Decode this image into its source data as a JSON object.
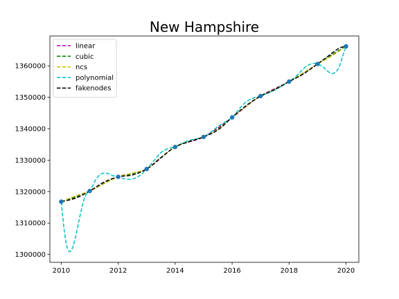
{
  "chart_data": {
    "type": "line",
    "title": "New Hampshire",
    "xlabel": "",
    "ylabel": "",
    "xlim": [
      2009.6,
      2020.45
    ],
    "ylim": [
      1297500,
      1369500
    ],
    "xticks": [
      2010,
      2012,
      2014,
      2016,
      2018,
      2020
    ],
    "yticks": [
      1300000,
      1310000,
      1320000,
      1330000,
      1340000,
      1350000,
      1360000
    ],
    "grid": false,
    "legend_position": "top-left",
    "points": {
      "name": "",
      "color": "#1f77b4",
      "x": [
        2010,
        2011,
        2012,
        2013,
        2014,
        2015,
        2016,
        2017,
        2018,
        2019,
        2020
      ],
      "y": [
        1316800,
        1320200,
        1324700,
        1327200,
        1334200,
        1337400,
        1343600,
        1350400,
        1355000,
        1360600,
        1366200
      ]
    },
    "series": [
      {
        "name": "linear",
        "color": "#bf00bf",
        "x": [
          2010,
          2011,
          2012,
          2013,
          2014,
          2015,
          2016,
          2017,
          2018,
          2019,
          2020
        ],
        "y": [
          1316800,
          1320200,
          1324700,
          1327200,
          1334200,
          1337400,
          1343600,
          1350400,
          1355000,
          1360600,
          1366200
        ]
      },
      {
        "name": "cubic",
        "color": "#008000",
        "x": [
          2010,
          2010.5,
          2011,
          2011.5,
          2012,
          2012.5,
          2013,
          2013.5,
          2014,
          2014.5,
          2015,
          2015.5,
          2016,
          2016.5,
          2017,
          2017.5,
          2018,
          2018.5,
          2019,
          2019.5,
          2020
        ],
        "y": [
          1316800,
          1318200,
          1320200,
          1322700,
          1324700,
          1325700,
          1327200,
          1330800,
          1334200,
          1336000,
          1337400,
          1339900,
          1343600,
          1347300,
          1350400,
          1352600,
          1355000,
          1357600,
          1360600,
          1363600,
          1366200
        ]
      },
      {
        "name": "ncs",
        "color": "#bfbf00",
        "x": [
          2010,
          2010.5,
          2011,
          2011.5,
          2012,
          2012.5,
          2013,
          2013.5,
          2014,
          2014.5,
          2015,
          2015.5,
          2016,
          2016.5,
          2017,
          2017.5,
          2018,
          2018.5,
          2019,
          2019.5,
          2020
        ],
        "y": [
          1316800,
          1318600,
          1320200,
          1322500,
          1324700,
          1325900,
          1327200,
          1330700,
          1334200,
          1336100,
          1337400,
          1339800,
          1343600,
          1347200,
          1350400,
          1352600,
          1355000,
          1357800,
          1360600,
          1363200,
          1366200
        ]
      },
      {
        "name": "polynomial",
        "color": "#00bfbf",
        "x": [
          2010,
          2010.1,
          2010.2,
          2010.3,
          2010.4,
          2010.5,
          2010.6,
          2010.7,
          2010.8,
          2010.9,
          2011,
          2011.1,
          2011.2,
          2011.35,
          2011.5,
          2011.65,
          2011.8,
          2012,
          2012.2,
          2012.4,
          2012.6,
          2012.8,
          2013,
          2013.25,
          2013.5,
          2013.75,
          2014,
          2014.25,
          2014.5,
          2014.75,
          2015,
          2015.25,
          2015.5,
          2015.75,
          2016,
          2016.25,
          2016.5,
          2016.75,
          2017,
          2017.25,
          2017.5,
          2017.75,
          2018,
          2018.2,
          2018.4,
          2018.6,
          2018.8,
          2019,
          2019.2,
          2019.4,
          2019.55,
          2019.7,
          2019.8,
          2019.9,
          2020
        ],
        "y": [
          1316800,
          1308000,
          1302500,
          1300900,
          1302200,
          1305500,
          1309800,
          1314000,
          1317500,
          1319400,
          1320200,
          1321800,
          1323600,
          1325300,
          1325900,
          1325700,
          1325100,
          1324700,
          1324100,
          1323900,
          1324300,
          1325400,
          1327200,
          1329800,
          1332400,
          1333700,
          1334200,
          1335400,
          1336300,
          1336800,
          1337400,
          1338900,
          1340700,
          1342100,
          1343600,
          1346300,
          1348600,
          1349800,
          1350400,
          1351300,
          1352300,
          1353600,
          1355000,
          1356300,
          1358100,
          1359800,
          1360700,
          1360600,
          1359600,
          1358000,
          1357600,
          1358700,
          1360700,
          1363500,
          1366200
        ]
      },
      {
        "name": "fakenodes",
        "color": "#000000",
        "x": [
          2010,
          2010.5,
          2011,
          2011.5,
          2012,
          2012.5,
          2013,
          2013.5,
          2014,
          2014.5,
          2015,
          2015.5,
          2016,
          2016.5,
          2017,
          2017.5,
          2018,
          2018.5,
          2019,
          2019.3,
          2019.6,
          2019.8,
          2020
        ],
        "y": [
          1316800,
          1317900,
          1320200,
          1323000,
          1324700,
          1325300,
          1327200,
          1330800,
          1334200,
          1335900,
          1337400,
          1339600,
          1343600,
          1347400,
          1350400,
          1352500,
          1355000,
          1357400,
          1360600,
          1362600,
          1364700,
          1365800,
          1366200
        ]
      }
    ]
  }
}
